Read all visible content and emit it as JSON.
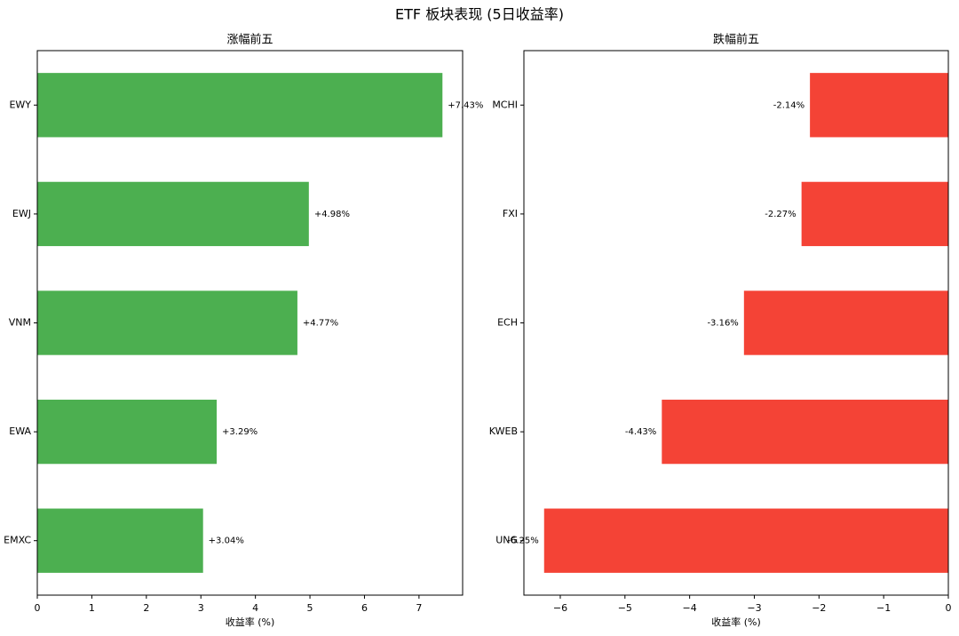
{
  "title": "ETF 板块表现 (5日收益率)",
  "chart_data": [
    {
      "type": "bar",
      "orientation": "horizontal",
      "title": "涨幅前五",
      "xlabel": "收益率 (%)",
      "categories": [
        "EWY",
        "EWJ",
        "VNM",
        "EWA",
        "EMXC"
      ],
      "values": [
        7.43,
        4.98,
        4.77,
        3.29,
        3.04
      ],
      "value_labels": [
        "+7.43%",
        "+4.98%",
        "+4.77%",
        "+3.29%",
        "+3.04%"
      ],
      "color": "#4caf50",
      "xlim": [
        0,
        7.8
      ],
      "xticks": [
        0,
        1,
        2,
        3,
        4,
        5,
        6,
        7
      ]
    },
    {
      "type": "bar",
      "orientation": "horizontal",
      "title": "跌幅前五",
      "xlabel": "收益率 (%)",
      "categories": [
        "MCHI",
        "FXI",
        "ECH",
        "KWEB",
        "UNG"
      ],
      "values": [
        -2.14,
        -2.27,
        -3.16,
        -4.43,
        -6.25
      ],
      "value_labels": [
        "-2.14%",
        "-2.27%",
        "-3.16%",
        "-4.43%",
        "-6.25%"
      ],
      "color": "#f44336",
      "xlim": [
        -6.5625,
        0
      ],
      "xticks": [
        {
          "value": -6,
          "label": "−6"
        },
        {
          "value": -5,
          "label": "−5"
        },
        {
          "value": -4,
          "label": "−4"
        },
        {
          "value": -3,
          "label": "−3"
        },
        {
          "value": -2,
          "label": "−2"
        },
        {
          "value": -1,
          "label": "−1"
        },
        0
      ]
    }
  ]
}
